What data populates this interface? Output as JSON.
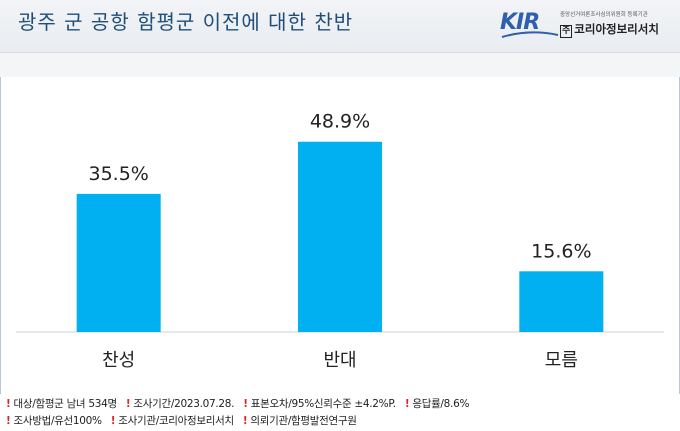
{
  "header": {
    "title": "광주 군 공항 함평군 이전에 대한 찬반"
  },
  "logo": {
    "mark": "KIR",
    "subtext": "중앙선거여론조사심의위원회 등록기관",
    "box": "주",
    "name": "코리아정보리서치"
  },
  "footer": {
    "line1": [
      "대상/함평군 남녀 534명",
      "조사기간/2023.07.28.",
      "표본오차/95%신뢰수준 ±4.2%P.",
      "응답률/8.6%"
    ],
    "line2": [
      "조사방법/유선100%",
      "조사기관/코리아정보리서치",
      "의뢰기관/함평발전연구원"
    ]
  },
  "colors": {
    "bar": "#00b0f0",
    "title": "#1f4e79",
    "marker": "#d9262c"
  },
  "chart_data": {
    "type": "bar",
    "title": "광주 군 공항 함평군 이전에 대한 찬반",
    "xlabel": "",
    "ylabel": "",
    "categories": [
      "찬성",
      "반대",
      "모름"
    ],
    "values": [
      35.5,
      48.9,
      15.6
    ],
    "value_labels": [
      "35.5%",
      "48.9%",
      "15.6%"
    ],
    "ylim": [
      0,
      55
    ],
    "grid": false,
    "legend": "none"
  }
}
